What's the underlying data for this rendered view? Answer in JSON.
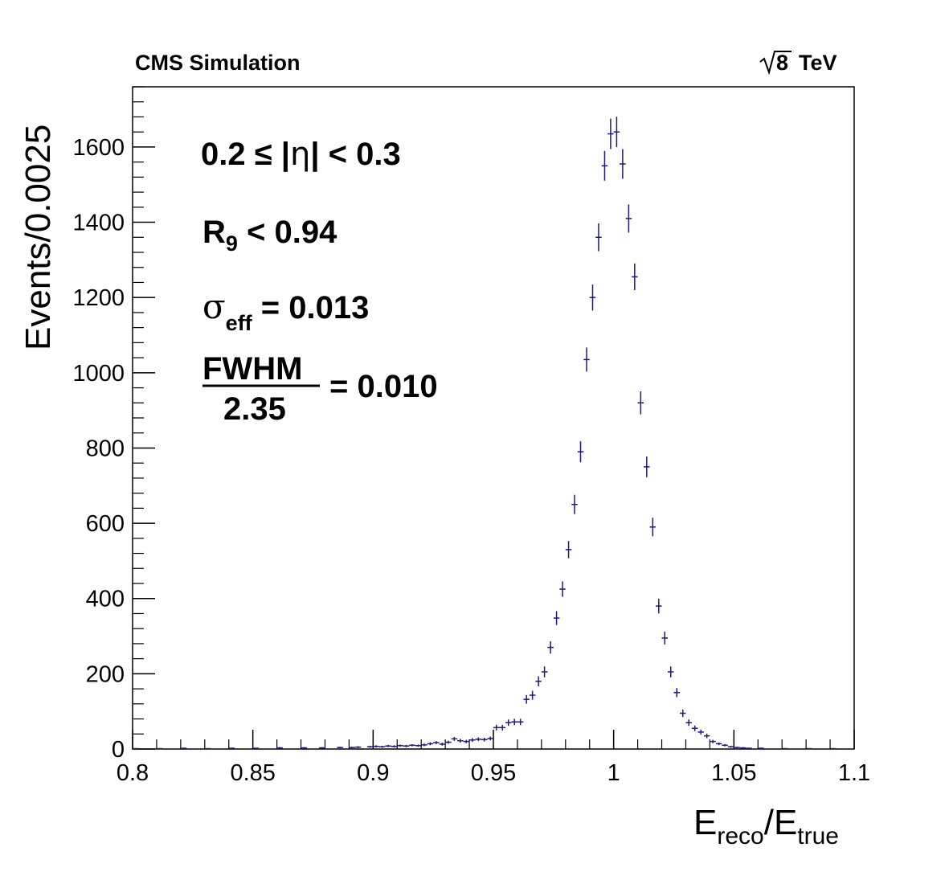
{
  "header": {
    "left_label": "CMS Simulation",
    "energy_value": "8",
    "energy_unit": "TeV"
  },
  "annotations": {
    "eta_range_prefix": "0.2 ≤ |",
    "eta_symbol": "η",
    "eta_range_suffix": "| < 0.3",
    "r9_symbol": "R",
    "r9_sub": "9",
    "r9_rest": " < 0.94",
    "sigma_symbol": "σ",
    "sigma_sub": "eff",
    "sigma_value": " = 0.013",
    "fwhm_numerator": "FWHM",
    "fwhm_denominator": "2.35",
    "fwhm_value": "= 0.010"
  },
  "colors": {
    "series": "#1a1a80",
    "axes": "#000000"
  },
  "chart_data": {
    "type": "scatter",
    "xlabel_main": "E",
    "xlabel_sub1": "reco",
    "xlabel_slash": "/E",
    "xlabel_sub2": "true",
    "ylabel": "Events/0.0025",
    "xlim": [
      0.8,
      1.1
    ],
    "ylim": [
      0,
      1760
    ],
    "x_ticks": [
      0.8,
      0.85,
      0.9,
      0.95,
      1,
      1.05,
      1.1
    ],
    "x_tick_labels": [
      "0.8",
      "0.85",
      "0.9",
      "0.95",
      "1",
      "1.05",
      "1.1"
    ],
    "y_ticks": [
      0,
      200,
      400,
      600,
      800,
      1000,
      1200,
      1400,
      1600
    ],
    "y_tick_labels": [
      "0",
      "200",
      "400",
      "600",
      "800",
      "1000",
      "1200",
      "1400",
      "1600"
    ],
    "bin_width": 0.0025,
    "series": [
      {
        "x": [
          0.80125,
          0.81125,
          0.82125,
          0.83125,
          0.84125,
          0.85125,
          0.86125,
          0.87125,
          0.87875,
          0.88625,
          0.89125,
          0.89375,
          0.89875,
          0.90125,
          0.90375,
          0.90625,
          0.90875,
          0.91125,
          0.91375,
          0.91625,
          0.91875,
          0.92125,
          0.92375,
          0.92625,
          0.92875,
          0.93125,
          0.93375,
          0.93625,
          0.93875,
          0.94125,
          0.94375,
          0.94625,
          0.94875,
          0.95125,
          0.95375,
          0.95625,
          0.95875,
          0.96125,
          0.96375,
          0.96625,
          0.96875,
          0.97125,
          0.97375,
          0.97625,
          0.97875,
          0.98125,
          0.98375,
          0.98625,
          0.98875,
          0.99125,
          0.99375,
          0.99625,
          0.99875,
          1.00125,
          1.00375,
          1.00625,
          1.00875,
          1.01125,
          1.01375,
          1.01625,
          1.01875,
          1.02125,
          1.02375,
          1.02625,
          1.02875,
          1.03125,
          1.03375,
          1.03625,
          1.03875,
          1.04125,
          1.04375,
          1.04625,
          1.04875,
          1.05125,
          1.05375,
          1.05625,
          1.06125,
          1.07125,
          1.08125,
          1.09125
        ],
        "y": [
          1,
          1,
          2,
          1,
          2,
          2,
          3,
          3,
          3,
          4,
          4,
          5,
          6,
          7,
          6,
          8,
          7,
          9,
          8,
          10,
          9,
          11,
          14,
          17,
          13,
          18,
          27,
          22,
          20,
          24,
          26,
          25,
          28,
          57,
          57,
          70,
          72,
          72,
          132,
          143,
          180,
          205,
          270,
          348,
          425,
          530,
          650,
          790,
          1035,
          1200,
          1360,
          1550,
          1635,
          1640,
          1555,
          1410,
          1255,
          920,
          750,
          590,
          380,
          295,
          205,
          150,
          95,
          70,
          55,
          45,
          35,
          20,
          14,
          10,
          6,
          4,
          3,
          2,
          2,
          1,
          1,
          1
        ],
        "err": [
          1,
          1,
          1.5,
          1,
          1.5,
          1.5,
          2,
          2,
          2,
          2,
          2,
          2.5,
          2.5,
          3,
          2.5,
          3,
          3,
          3,
          3,
          3,
          3,
          3.5,
          4,
          4,
          4,
          4,
          5,
          5,
          4.5,
          5,
          5,
          5,
          5,
          7.5,
          7.5,
          8.5,
          8.5,
          8.5,
          11.5,
          12,
          13.5,
          14.5,
          16.5,
          18.5,
          20.5,
          23,
          25.5,
          28,
          32,
          34.5,
          37,
          39.5,
          40.5,
          40.5,
          39.5,
          37.5,
          35.5,
          30.5,
          27.5,
          24.5,
          19.5,
          17,
          14.5,
          12,
          10,
          8.5,
          7.5,
          6.5,
          6,
          4.5,
          3.5,
          3,
          2.5,
          2,
          2,
          1.5,
          1.5,
          1,
          1,
          1
        ]
      }
    ]
  }
}
